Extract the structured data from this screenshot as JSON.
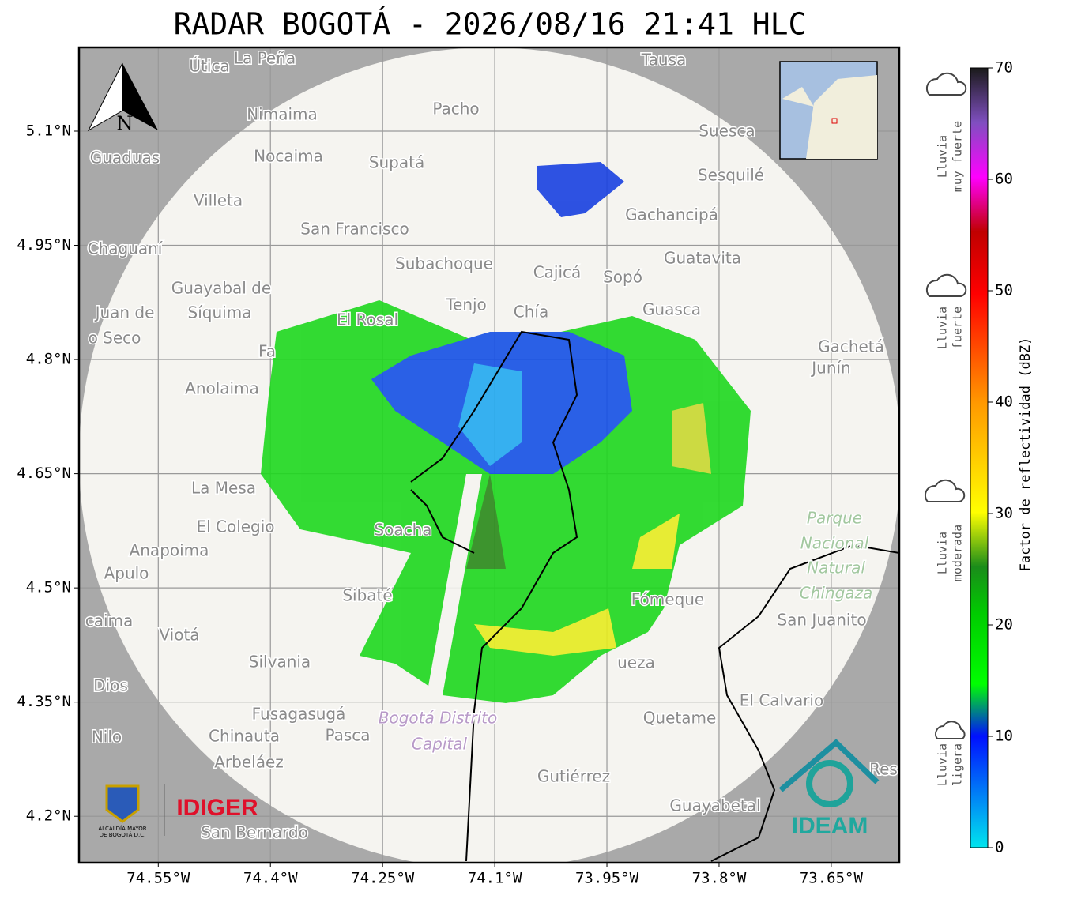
{
  "title": "RADAR BOGOTÁ - 2026/08/16 21:41 HLC",
  "map": {
    "xlim": [
      -74.656,
      -73.559
    ],
    "ylim": [
      4.139,
      5.21
    ],
    "xticks": [
      {
        "value": -74.55,
        "label": "74.55°W"
      },
      {
        "value": -74.4,
        "label": "74.4°W"
      },
      {
        "value": -74.25,
        "label": "74.25°W"
      },
      {
        "value": -74.1,
        "label": "74.1°W"
      },
      {
        "value": -73.95,
        "label": "73.95°W"
      },
      {
        "value": -73.8,
        "label": "73.8°W"
      },
      {
        "value": -73.65,
        "label": "73.65°W"
      }
    ],
    "yticks": [
      {
        "value": 5.1,
        "label": "5.1°N"
      },
      {
        "value": 4.95,
        "label": "4.95°N"
      },
      {
        "value": 4.8,
        "label": "4.8°N"
      },
      {
        "value": 4.65,
        "label": "4.65°N"
      },
      {
        "value": 4.5,
        "label": "4.5°N"
      },
      {
        "value": 4.35,
        "label": "4.35°N"
      },
      {
        "value": 4.2,
        "label": "4.2°N"
      }
    ],
    "north": "N",
    "places": [
      "Útica",
      "La Peña",
      "Tausa",
      "Nimaima",
      "Pacho",
      "Suesca",
      "Guaduas",
      "Nocaima",
      "Supatá",
      "Sesquilé",
      "Villeta",
      "Gachancipá",
      "San Francisco",
      "Chaguaní",
      "Subachoque",
      "Cajicá",
      "Sopó",
      "Guatavita",
      "Guayabal de",
      "Síquima",
      "Juan de",
      "Tenjo",
      "Chía",
      "Guasca",
      "El Rosal",
      "o Seco",
      "Gachetá",
      "Junín",
      "Fa",
      "Anolaima",
      "La Mesa",
      "El Colegio",
      "Anapoima",
      "Apulo",
      "Soacha",
      "Sibaté",
      "Fómeque",
      "San Juanito",
      "caima",
      "Viotá",
      "Silvania",
      "ueza",
      "Dios",
      "El Calvario",
      "Fusagasugá",
      "Quetame",
      "Nilo",
      "Chinauta",
      "Pasca",
      "Arbeláez",
      "Gutiérrez",
      "Res",
      "Guayabetal",
      "San Bernardo"
    ],
    "park": [
      "Parque",
      "Nacional",
      "Natural",
      "Chingaza"
    ],
    "district": [
      "Bogotá Distrito",
      "Capital"
    ]
  },
  "colorbar": {
    "label": "Factor de reflectividad (dBZ)",
    "lim": [
      0,
      70
    ],
    "ticks": [
      0,
      10,
      20,
      30,
      40,
      50,
      60,
      70
    ]
  },
  "rain_levels": [
    [
      "Lluvia",
      "muy fuerte"
    ],
    [
      "Lluvia",
      "fuerte"
    ],
    [
      "Lluvia",
      "moderada"
    ],
    [
      "Lluvia",
      "ligera"
    ]
  ],
  "logos": {
    "idiger": "IDIGER",
    "alcaldia": [
      "ALCALDÍA MAYOR",
      "DE BOGOTÁ D.C."
    ],
    "ideam": "IDEAM"
  }
}
